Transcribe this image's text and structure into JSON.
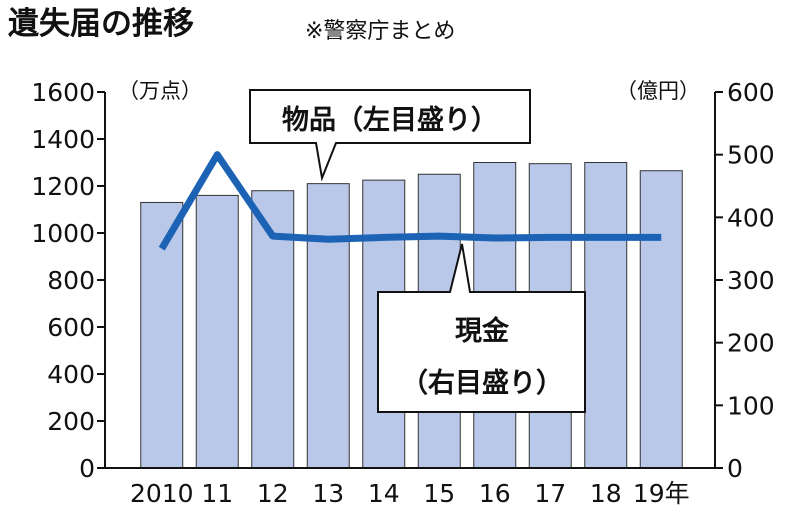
{
  "chart_data": {
    "type": "bar-line",
    "title": "遺失届の推移",
    "subtitle": "※警察庁まとめ",
    "y_unit": "（万点）",
    "y2_unit": "（億円）",
    "categories": [
      "2010",
      "11",
      "12",
      "13",
      "14",
      "15",
      "16",
      "17",
      "18",
      "19年"
    ],
    "series": [
      {
        "name": "物品（左目盛り）",
        "type": "bar",
        "color": "#b9c8e8",
        "values": [
          1130,
          1160,
          1180,
          1210,
          1225,
          1250,
          1300,
          1295,
          1300,
          1265
        ]
      },
      {
        "name": "現金（右目盛り）",
        "type": "line",
        "axis": "y2",
        "color": "#1c63b5",
        "values": [
          350,
          500,
          370,
          365,
          368,
          370,
          367,
          368,
          368,
          368
        ]
      }
    ],
    "ylim": [
      0,
      1600
    ],
    "yticks": [
      0,
      200,
      400,
      600,
      800,
      1000,
      1200,
      1400,
      1600
    ],
    "y2lim": [
      0,
      600
    ],
    "y2ticks": [
      0,
      100,
      200,
      300,
      400,
      500,
      600
    ]
  }
}
